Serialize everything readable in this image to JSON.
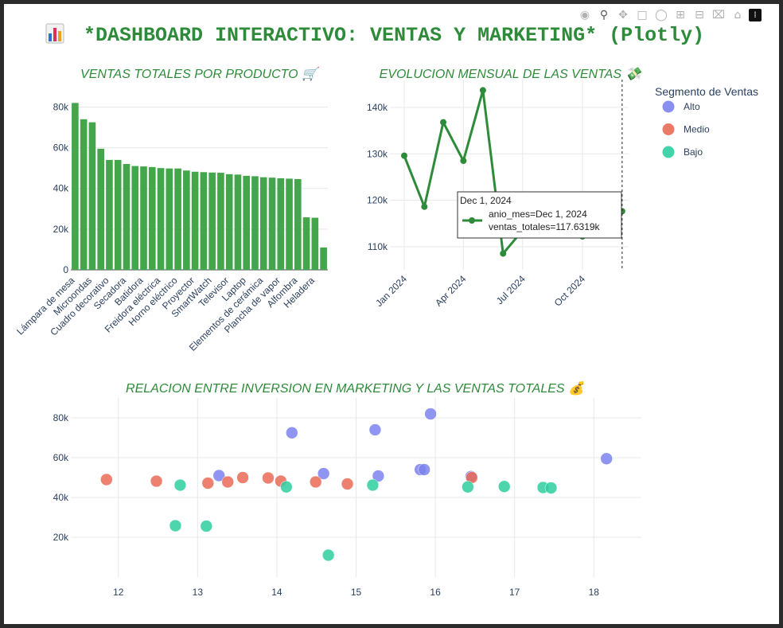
{
  "page": {
    "title": "*DASHBOARD INTERACTIVO: VENTAS Y MARKETING* (Plotly)",
    "title_icon": "bar-chart-emoji-icon",
    "modebar": [
      "camera-icon",
      "zoom-icon",
      "pan-icon",
      "box-select-icon",
      "lasso-icon",
      "zoom-in-icon",
      "zoom-out-icon",
      "autoscale-icon",
      "reset-axes-icon",
      "plotly-logo-icon"
    ]
  },
  "colors": {
    "title": "#2e8b3a",
    "bar": "#44a64a",
    "line": "#2e8b3a",
    "alto": "#7b83ef",
    "medio": "#ea6a55",
    "bajo": "#2ecfa0",
    "grid": "#e8e8e8",
    "axis_text": "#2a3f5f"
  },
  "chart_data": [
    {
      "type": "bar",
      "title": "VENTAS TOTALES POR PRODUCTO 🛒",
      "categories": [
        "Lámpara de mesa",
        "",
        "Microondas",
        "",
        "Cuadro decorativo",
        "",
        "Secadora",
        "",
        "Batidora",
        "",
        "Freidora eléctrica",
        "",
        "Horno eléctrico",
        "",
        "Proyector",
        "",
        "SmartWatch",
        "",
        "Televisor",
        "",
        "Laptop",
        "",
        "Elementos de cerámica",
        "",
        "Plancha de vapor",
        "",
        "Alfombra",
        "",
        "Heladera",
        ""
      ],
      "values": [
        82000,
        74000,
        72500,
        59500,
        54000,
        54000,
        52000,
        51000,
        50800,
        50500,
        50000,
        49800,
        49800,
        48800,
        48200,
        48000,
        47800,
        47700,
        47000,
        46800,
        46200,
        46000,
        45500,
        45300,
        45000,
        44800,
        44600,
        25800,
        25600,
        11000
      ],
      "ylim": [
        0,
        88000
      ],
      "yticks": [
        0,
        20000,
        40000,
        60000,
        80000
      ],
      "ytick_labels": [
        "0",
        "20k",
        "40k",
        "60k",
        "80k"
      ]
    },
    {
      "type": "line",
      "title": "EVOLUCION MENSUAL DE LAS VENTAS 💸",
      "x": [
        "2024-01-01",
        "2024-02-01",
        "2024-03-01",
        "2024-04-01",
        "2024-05-01",
        "2024-06-01",
        "2024-07-01",
        "2024-08-01",
        "2024-09-01",
        "2024-10-01",
        "2024-11-01",
        "2024-12-01"
      ],
      "y": [
        129600,
        118600,
        136800,
        128500,
        143700,
        108500,
        113500,
        117000,
        119800,
        112200,
        116500,
        117631.9
      ],
      "xticks": [
        "Jan 2024",
        "Apr 2024",
        "Jul 2024",
        "Oct 2024"
      ],
      "ylim": [
        105000,
        146000
      ],
      "yticks": [
        110000,
        120000,
        130000,
        140000
      ],
      "ytick_labels": [
        "110k",
        "120k",
        "130k",
        "140k"
      ],
      "hover": {
        "header": "Dec 1, 2024",
        "line1": "anio_mes=Dec 1, 2024",
        "line2": "ventas_totales=117.6319k"
      }
    },
    {
      "type": "scatter",
      "title": "RELACION ENTRE INVERSION EN MARKETING Y LAS VENTAS TOTALES 💰",
      "xlim": [
        11.4,
        18.6
      ],
      "ylim": [
        0,
        90000
      ],
      "xticks": [
        12,
        13,
        14,
        15,
        16,
        17,
        18
      ],
      "yticks": [
        20000,
        40000,
        60000,
        80000
      ],
      "ytick_labels": [
        "20k",
        "40k",
        "60k",
        "80k"
      ],
      "legend_title": "Segmento de Ventas",
      "legend_placement": "top-right",
      "series": [
        {
          "name": "Alto",
          "points": [
            [
              13.27,
              51000
            ],
            [
              14.19,
              72500
            ],
            [
              14.59,
              52000
            ],
            [
              15.24,
              74000
            ],
            [
              15.28,
              50800
            ],
            [
              15.81,
              54000
            ],
            [
              15.86,
              54000
            ],
            [
              15.94,
              82000
            ],
            [
              16.45,
              50500
            ],
            [
              18.16,
              59500
            ]
          ]
        },
        {
          "name": "Medio",
          "points": [
            [
              11.85,
              49000
            ],
            [
              12.48,
              48200
            ],
            [
              13.13,
              47200
            ],
            [
              13.38,
              47800
            ],
            [
              13.57,
              50000
            ],
            [
              13.89,
              49800
            ],
            [
              14.05,
              48200
            ],
            [
              14.49,
              47800
            ],
            [
              14.89,
              46800
            ],
            [
              16.46,
              50000
            ]
          ]
        },
        {
          "name": "Bajo",
          "points": [
            [
              12.78,
              46200
            ],
            [
              12.72,
              25800
            ],
            [
              13.11,
              25600
            ],
            [
              14.12,
              45300
            ],
            [
              14.65,
              11000
            ],
            [
              15.21,
              46200
            ],
            [
              16.41,
              45300
            ],
            [
              16.87,
              45500
            ],
            [
              17.36,
              45000
            ],
            [
              17.46,
              44800
            ]
          ]
        }
      ]
    }
  ]
}
